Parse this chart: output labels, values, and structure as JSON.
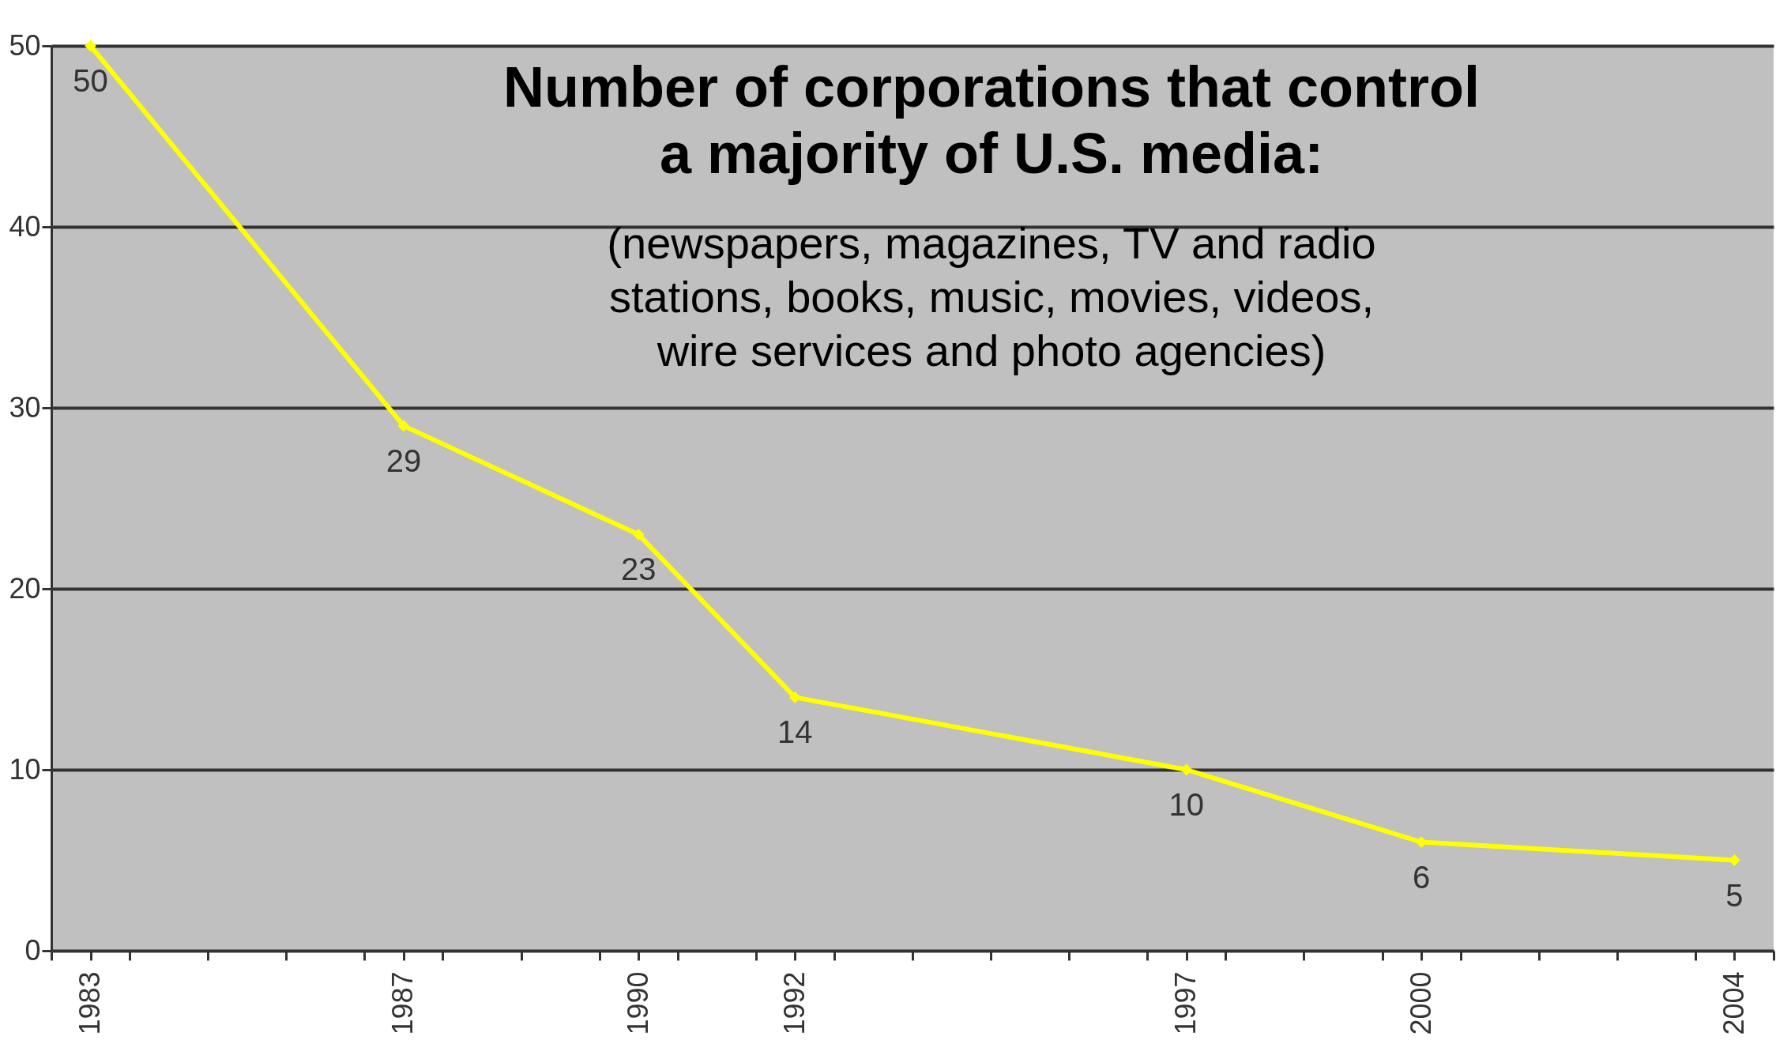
{
  "chart_data": {
    "type": "line",
    "title": "Number of corporations that control\na majority of U.S. media:",
    "subtitle": "(newspapers, magazines, TV and radio\nstations, books, music, movies, videos,\nwire services and photo agencies)",
    "x": [
      1983,
      1987,
      1990,
      1992,
      1997,
      2000,
      2004
    ],
    "series": [
      {
        "color": "#ffff00",
        "values": [
          50,
          29,
          23,
          14,
          10,
          6,
          5
        ]
      }
    ],
    "data_labels": true,
    "marker": "diamond",
    "line_style": "solid",
    "grid": "y",
    "xlim": [
      1982.5,
      2004.5
    ],
    "xticks": [
      1983,
      1987,
      1990,
      1992,
      1997,
      2000,
      2004,
      {
        "value": 1982.5,
        "label": null
      },
      {
        "value": 1983.5,
        "label": null
      },
      {
        "value": 1984.5,
        "label": null
      },
      {
        "value": 1985.5,
        "label": null
      },
      {
        "value": 1986.5,
        "label": null
      },
      {
        "value": 1987.5,
        "label": null
      },
      {
        "value": 1988.5,
        "label": null
      },
      {
        "value": 1989.5,
        "label": null
      },
      {
        "value": 1990.5,
        "label": null
      },
      {
        "value": 1991.5,
        "label": null
      },
      {
        "value": 1992.5,
        "label": null
      },
      {
        "value": 1993.5,
        "label": null
      },
      {
        "value": 1994.5,
        "label": null
      },
      {
        "value": 1995.5,
        "label": null
      },
      {
        "value": 1996.5,
        "label": null
      },
      {
        "value": 1997.5,
        "label": null
      },
      {
        "value": 1998.5,
        "label": null
      },
      {
        "value": 1999.5,
        "label": null
      },
      {
        "value": 2000.5,
        "label": null
      },
      {
        "value": 2001.5,
        "label": null
      },
      {
        "value": 2002.5,
        "label": null
      },
      {
        "value": 2003.5,
        "label": null
      },
      {
        "value": 2004.5,
        "label": null
      }
    ],
    "ylim": [
      0,
      50
    ],
    "yticks": [
      0,
      10,
      20,
      30,
      40,
      50
    ]
  }
}
